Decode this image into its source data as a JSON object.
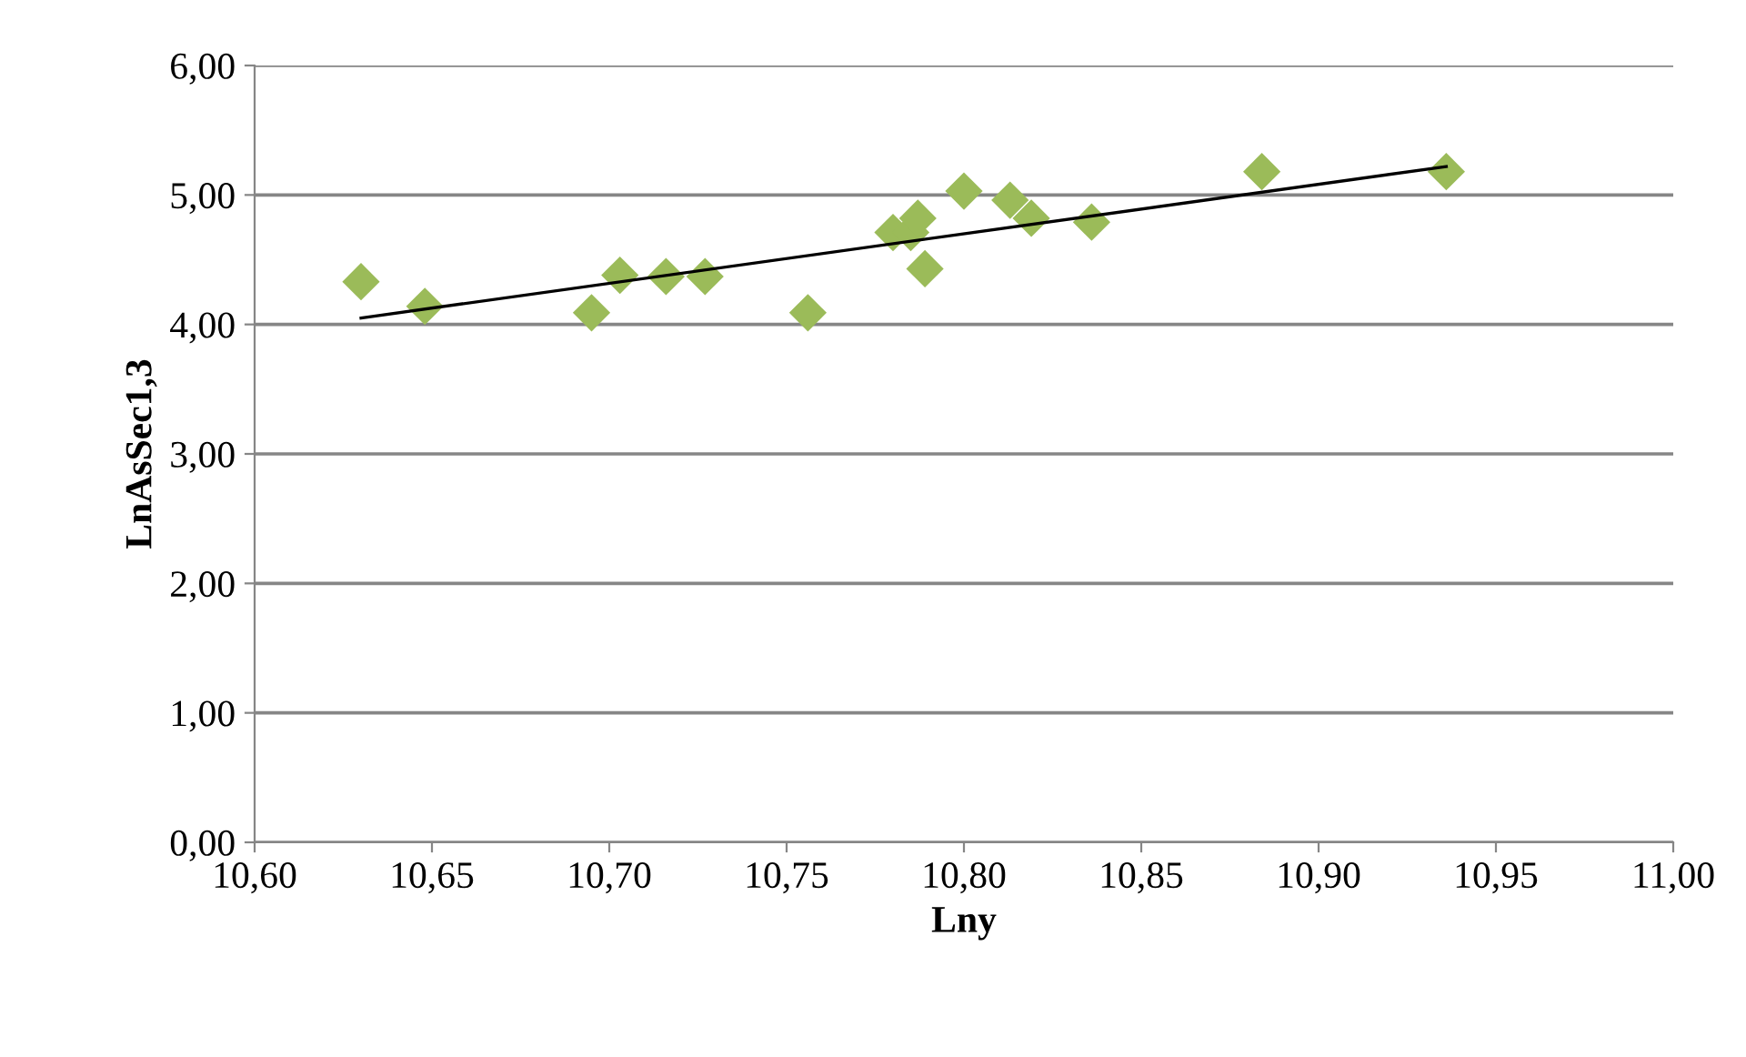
{
  "chart_data": {
    "type": "scatter",
    "xlabel": "Lny",
    "ylabel": "LnAsSec1,3",
    "series": [
      {
        "color": "#9bbb59",
        "marker": "diamond",
        "x": [
          10.63,
          10.648,
          10.695,
          10.703,
          10.716,
          10.727,
          10.756,
          10.78,
          10.785,
          10.787,
          10.789,
          10.8,
          10.813,
          10.819,
          10.836,
          10.884,
          10.936
        ],
        "values": [
          4.33,
          4.14,
          4.09,
          4.38,
          4.37,
          4.37,
          4.09,
          4.71,
          4.71,
          4.82,
          4.43,
          5.03,
          4.96,
          4.82,
          4.79,
          5.18,
          5.18
        ]
      },
      {
        "type": "line",
        "color": "#000000",
        "marker": "none",
        "line_style": "solid",
        "x": [
          10.63,
          10.936
        ],
        "values": [
          4.05,
          5.22
        ]
      }
    ],
    "xlim": [
      10.6,
      11.0
    ],
    "xticks": [
      {
        "value": 10.6,
        "label": "10,60"
      },
      {
        "value": 10.65,
        "label": "10,65"
      },
      {
        "value": 10.7,
        "label": "10,70"
      },
      {
        "value": 10.75,
        "label": "10,75"
      },
      {
        "value": 10.8,
        "label": "10,80"
      },
      {
        "value": 10.85,
        "label": "10,85"
      },
      {
        "value": 10.9,
        "label": "10,90"
      },
      {
        "value": 10.95,
        "label": "10,95"
      },
      {
        "value": 11.0,
        "label": "11,00"
      }
    ],
    "ylim": [
      0,
      6
    ],
    "yticks": [
      {
        "value": 0,
        "label": "0,00"
      },
      {
        "value": 1,
        "label": "1,00"
      },
      {
        "value": 2,
        "label": "2,00"
      },
      {
        "value": 3,
        "label": "3,00"
      },
      {
        "value": 4,
        "label": "4,00"
      },
      {
        "value": 5,
        "label": "5,00"
      },
      {
        "value": 6,
        "label": "6,00"
      }
    ],
    "grid": "y",
    "legend": false
  }
}
